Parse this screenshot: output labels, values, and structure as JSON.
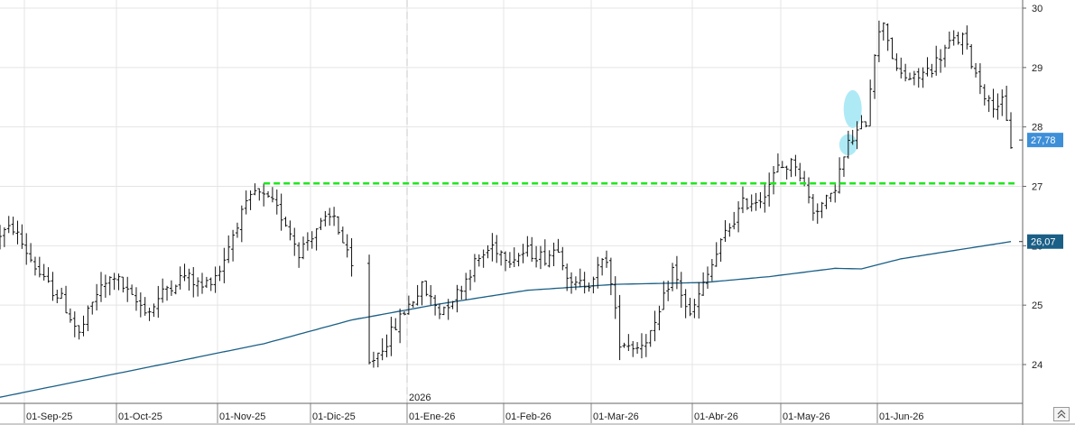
{
  "chart_data": {
    "type": "bar",
    "title": "",
    "x_tick_labels": [
      "01-Sep-25",
      "01-Oct-25",
      "01-Nov-25",
      "01-Dic-25",
      "01-Ene-26",
      "01-Feb-26",
      "01-Mar-26",
      "01-Abr-26",
      "01-May-26",
      "01-Jun-26"
    ],
    "year_marker": "2026",
    "y_tick_labels": [
      "24",
      "25",
      "26",
      "27",
      "28",
      "29",
      "30"
    ],
    "ylim": [
      23.45,
      30.1
    ],
    "grid": true,
    "last_price": {
      "value": 27.78,
      "label": "27,78",
      "color": "#3d8fd8"
    },
    "moving_average": {
      "value": 26.07,
      "label": "26,07",
      "color": "#1a5f86"
    },
    "support_line": {
      "value": 27.05,
      "color": "#1ee81e",
      "style": "dashed"
    },
    "highlight_color": "#aeeaf6",
    "highlights": [
      {
        "date_index": 193,
        "price_center": 27.7,
        "price_half_height": 0.18
      },
      {
        "date_index": 194,
        "price_center": 28.3,
        "price_half_height": 0.32
      }
    ],
    "bar_color": "#111111",
    "series": [
      {
        "kind": "ohlc",
        "description": "daily price bars, approx. 01-Sep-25 to 01-Jul-26",
        "keypoints": [
          [
            0,
            26.2
          ],
          [
            3,
            26.3
          ],
          [
            6,
            25.9
          ],
          [
            10,
            25.4
          ],
          [
            14,
            25.1
          ],
          [
            18,
            24.5
          ],
          [
            22,
            25.2
          ],
          [
            26,
            25.5
          ],
          [
            30,
            25.1
          ],
          [
            34,
            24.9
          ],
          [
            38,
            25.3
          ],
          [
            42,
            25.5
          ],
          [
            46,
            25.3
          ],
          [
            50,
            25.6
          ],
          [
            54,
            26.4
          ],
          [
            58,
            26.9
          ],
          [
            62,
            26.7
          ],
          [
            65,
            26.4
          ],
          [
            68,
            25.9
          ],
          [
            72,
            26.3
          ],
          [
            76,
            26.5
          ],
          [
            80,
            25.6
          ],
          [
            84,
            24.0
          ],
          [
            88,
            24.4
          ],
          [
            92,
            24.9
          ],
          [
            96,
            25.3
          ],
          [
            100,
            24.9
          ],
          [
            104,
            25.2
          ],
          [
            108,
            25.7
          ],
          [
            112,
            26.0
          ],
          [
            116,
            25.8
          ],
          [
            120,
            25.9
          ],
          [
            124,
            25.8
          ],
          [
            127,
            26.0
          ],
          [
            130,
            25.3
          ],
          [
            134,
            25.4
          ],
          [
            138,
            25.8
          ],
          [
            141,
            24.4
          ],
          [
            145,
            24.3
          ],
          [
            149,
            24.6
          ],
          [
            153,
            25.6
          ],
          [
            157,
            24.8
          ],
          [
            161,
            25.5
          ],
          [
            165,
            26.2
          ],
          [
            169,
            26.7
          ],
          [
            173,
            26.8
          ],
          [
            177,
            27.3
          ],
          [
            181,
            27.4
          ],
          [
            185,
            26.6
          ],
          [
            189,
            26.8
          ],
          [
            193,
            27.7
          ],
          [
            197,
            28.1
          ],
          [
            199,
            29.3
          ],
          [
            201,
            29.8
          ],
          [
            204,
            28.9
          ],
          [
            208,
            28.8
          ],
          [
            212,
            29.0
          ],
          [
            216,
            29.4
          ],
          [
            219,
            29.5
          ],
          [
            222,
            28.9
          ],
          [
            225,
            28.4
          ],
          [
            228,
            28.4
          ],
          [
            230,
            27.7
          ]
        ]
      },
      {
        "kind": "moving_average",
        "keypoints": [
          [
            0,
            23.45
          ],
          [
            20,
            23.75
          ],
          [
            40,
            24.05
          ],
          [
            60,
            24.35
          ],
          [
            80,
            24.75
          ],
          [
            100,
            25.02
          ],
          [
            120,
            25.25
          ],
          [
            140,
            25.35
          ],
          [
            160,
            25.38
          ],
          [
            175,
            25.48
          ],
          [
            190,
            25.62
          ],
          [
            196,
            25.61
          ],
          [
            205,
            25.78
          ],
          [
            230,
            26.07
          ]
        ]
      }
    ]
  },
  "corner_button": {
    "icon": "collapse-icon"
  }
}
